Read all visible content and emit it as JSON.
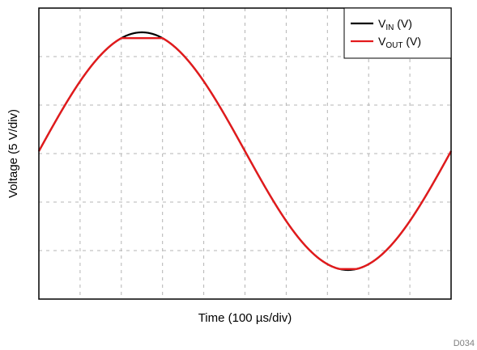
{
  "figure_id": "D034",
  "chart_data": {
    "type": "line",
    "title": "",
    "xlabel": "Time (100 µs/div)",
    "ylabel": "Voltage (5 V/div)",
    "x_divisions": 10,
    "y_divisions": 6,
    "xlim": [
      0,
      10
    ],
    "ylim": [
      -3,
      3
    ],
    "grid": true,
    "legend_position": "top-right",
    "series": [
      {
        "name": "V_IN (V)",
        "legend_main": "V",
        "legend_sub": "IN",
        "legend_suffix": " (V)",
        "color": "#000000",
        "waveform": "sine",
        "amplitude_div": 2.45,
        "offset_div": 0.05,
        "period_div": 10,
        "clip_div": null
      },
      {
        "name": "V_OUT (V)",
        "legend_main": "V",
        "legend_sub": "OUT",
        "legend_suffix": " (V)",
        "color": "#e31a1c",
        "waveform": "clipped-sine",
        "amplitude_div": 2.45,
        "offset_div": 0.05,
        "period_div": 10,
        "clip_div": [
          -2.38,
          2.38
        ]
      }
    ]
  }
}
